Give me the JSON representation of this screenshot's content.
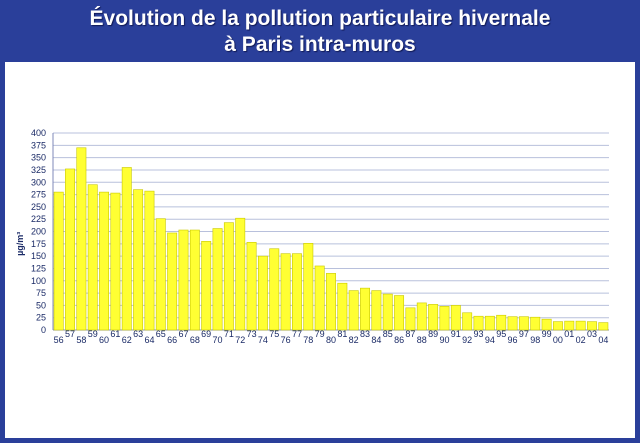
{
  "title": {
    "line1": "Évolution de la pollution particulaire hivernale",
    "line2": "à Paris intra-muros"
  },
  "colors": {
    "frame": "#2a3f9a",
    "bar_fill": "#ffff33",
    "bar_stroke": "#c9c900",
    "grid": "#b8c0dc",
    "text": "#1a2a66"
  },
  "chart_data": {
    "type": "bar",
    "title": "Évolution de la pollution particulaire hivernale à Paris intra-muros",
    "ylabel": "µg/m³",
    "xlabel": "",
    "ylim": [
      0,
      400
    ],
    "yticks": [
      0,
      25,
      50,
      75,
      100,
      125,
      150,
      175,
      200,
      225,
      250,
      275,
      300,
      325,
      350,
      375,
      400
    ],
    "grid": true,
    "categories": [
      "56",
      "57",
      "58",
      "59",
      "60",
      "61",
      "62",
      "63",
      "64",
      "65",
      "66",
      "67",
      "68",
      "69",
      "70",
      "71",
      "72",
      "73",
      "74",
      "75",
      "76",
      "77",
      "78",
      "79",
      "80",
      "81",
      "82",
      "83",
      "84",
      "85",
      "86",
      "87",
      "88",
      "89",
      "90",
      "91",
      "92",
      "93",
      "94",
      "95",
      "96",
      "97",
      "98",
      "99",
      "00",
      "01",
      "02",
      "03",
      "04"
    ],
    "values": [
      280,
      327,
      370,
      295,
      280,
      278,
      330,
      285,
      282,
      226,
      197,
      203,
      203,
      180,
      206,
      218,
      227,
      178,
      150,
      165,
      155,
      155,
      176,
      130,
      115,
      95,
      80,
      85,
      80,
      73,
      70,
      45,
      55,
      52,
      48,
      50,
      35,
      28,
      28,
      30,
      27,
      27,
      26,
      22,
      17,
      18,
      18,
      17,
      15
    ]
  }
}
